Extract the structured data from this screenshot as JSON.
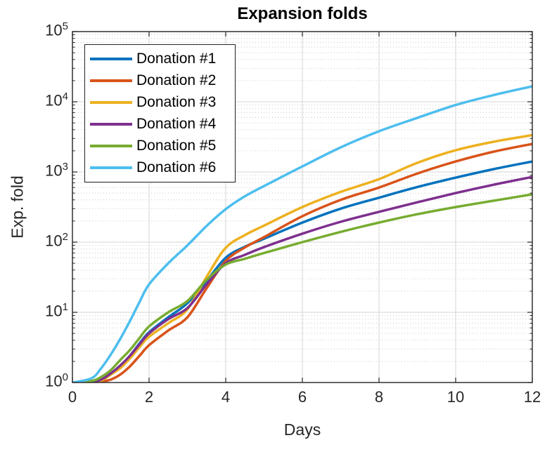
{
  "title": "Expansion folds",
  "axes": {
    "xlabel": "Days",
    "ylabel": "Exp. fold",
    "x_ticks": [
      0,
      2,
      4,
      6,
      8,
      10,
      12
    ],
    "x_grid_ticks": [
      2,
      4,
      6,
      8,
      10
    ],
    "y_tick_base": "10",
    "y_tick_exponents": [
      0,
      1,
      2,
      3,
      4,
      5
    ],
    "y_grid_exponents": [
      1,
      2,
      3,
      4
    ]
  },
  "colors": {
    "background": "#ffffff",
    "axis": "#222222",
    "text": "#262626",
    "major_grid": "#d6d6d6",
    "minor_grid": "#c9c9c9"
  },
  "chart_data": {
    "type": "line",
    "title": "Expansion folds",
    "xlabel": "Days",
    "ylabel": "Exp. fold",
    "x_range": [
      0,
      12
    ],
    "y_scale": "log10",
    "y_range": [
      1,
      100000
    ],
    "grid": true,
    "minor_grid": true,
    "legend_position": "northwest",
    "x": [
      0,
      0.5,
      0.75,
      1,
      1.25,
      1.5,
      1.75,
      2,
      2.5,
      3,
      3.5,
      4,
      4.5,
      5,
      6,
      7,
      8,
      9,
      10,
      11,
      12
    ],
    "series": [
      {
        "name": "Donation #1",
        "color": "#0072BD",
        "values": [
          1,
          1.02,
          1.08,
          1.3,
          1.7,
          2.4,
          3.6,
          5.2,
          8.5,
          13.5,
          28,
          60,
          86,
          112,
          190,
          300,
          430,
          610,
          830,
          1100,
          1410
        ]
      },
      {
        "name": "Donation #2",
        "color": "#D95319",
        "values": [
          1,
          1.0,
          1.03,
          1.1,
          1.3,
          1.7,
          2.4,
          3.4,
          5.5,
          8.5,
          22,
          54,
          84,
          118,
          234,
          400,
          600,
          950,
          1410,
          1950,
          2510
        ]
      },
      {
        "name": "Donation #3",
        "color": "#EDB120",
        "values": [
          1,
          1.01,
          1.06,
          1.3,
          1.6,
          2.2,
          3.2,
          4.5,
          7,
          11,
          32,
          83,
          126,
          172,
          316,
          520,
          790,
          1350,
          2040,
          2700,
          3350
        ]
      },
      {
        "name": "Donation #4",
        "color": "#7E2F8E",
        "values": [
          1,
          1.02,
          1.1,
          1.35,
          1.75,
          2.4,
          3.5,
          5.0,
          8,
          11.5,
          25,
          50,
          66,
          85,
          132,
          195,
          270,
          370,
          500,
          660,
          850
        ]
      },
      {
        "name": "Donation #5",
        "color": "#77AC30",
        "values": [
          1,
          1.05,
          1.2,
          1.5,
          2.1,
          2.9,
          4.3,
          6.3,
          10,
          14.5,
          29,
          48,
          58,
          70,
          100,
          140,
          190,
          250,
          316,
          390,
          480
        ]
      },
      {
        "name": "Donation #6",
        "color": "#4DBEEE",
        "values": [
          1,
          1.15,
          1.6,
          2.5,
          4.2,
          7.5,
          14,
          25,
          50,
          90,
          170,
          295,
          450,
          630,
          1200,
          2240,
          3800,
          5900,
          9000,
          12500,
          16600
        ]
      }
    ]
  }
}
